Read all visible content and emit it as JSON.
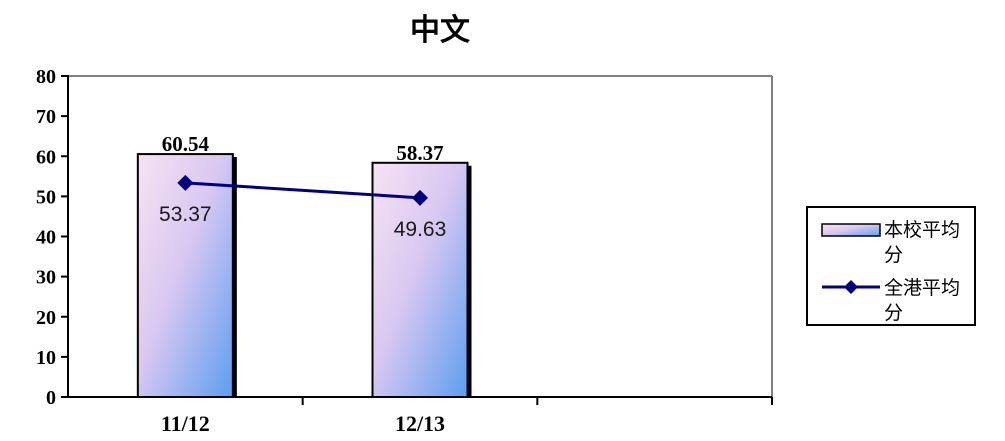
{
  "chart_data": {
    "type": "bar",
    "title": "中文",
    "categories": [
      "11/12",
      "12/13"
    ],
    "series": [
      {
        "name": "本校平均分",
        "type": "bar",
        "values": [
          60.54,
          58.37
        ],
        "labels": [
          "60.54",
          "58.37"
        ]
      },
      {
        "name": "全港平均分",
        "type": "line",
        "values": [
          53.37,
          49.63
        ],
        "labels": [
          "53.37",
          "49.63"
        ]
      }
    ],
    "yticks": [
      "0",
      "10",
      "20",
      "30",
      "40",
      "50",
      "60",
      "70",
      "80"
    ],
    "ylim": [
      0,
      80
    ],
    "grid": false,
    "legend": "right",
    "colors": {
      "bar_light": "#f7e3f3",
      "bar_dark": "#5c9ef0",
      "line": "#000080",
      "axis": "#808080"
    },
    "legend_labels": {
      "bar": [
        "本校平均",
        "分"
      ],
      "line": [
        "全港平均",
        "分"
      ]
    }
  }
}
